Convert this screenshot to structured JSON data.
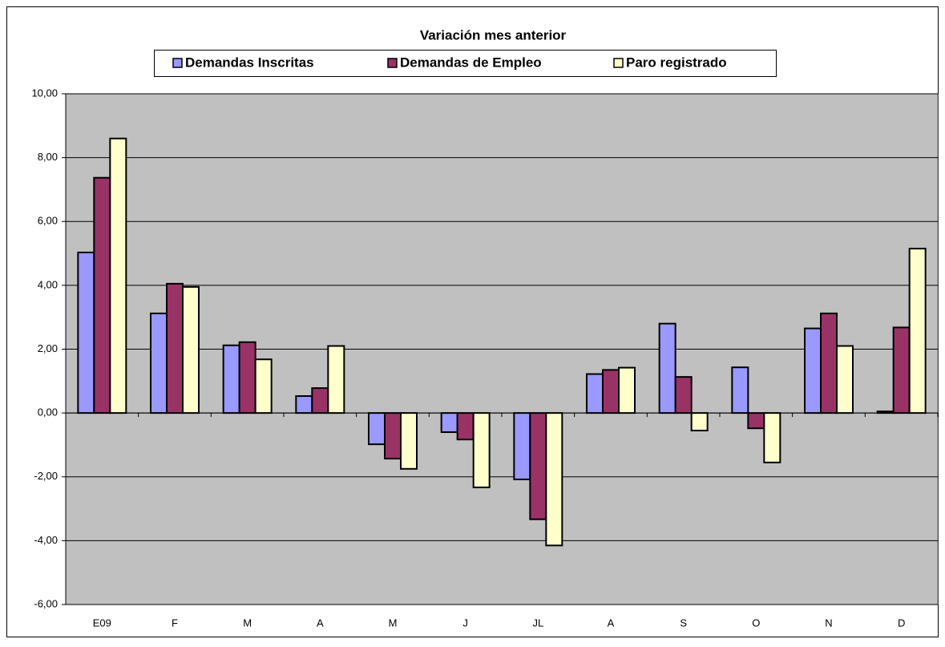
{
  "chart_data": {
    "type": "bar",
    "title": "Variación mes anterior",
    "categories": [
      "E09",
      "F",
      "M",
      "A",
      "M",
      "J",
      "JL",
      "A",
      "S",
      "O",
      "N",
      "D"
    ],
    "series": [
      {
        "name": "Demandas Inscritas",
        "color": "#9999ff",
        "values": [
          5.03,
          3.12,
          2.12,
          0.53,
          -0.98,
          -0.6,
          -2.08,
          1.22,
          2.8,
          1.43,
          2.65,
          0.05
        ]
      },
      {
        "name": "Demandas de Empleo",
        "color": "#993366",
        "values": [
          7.37,
          4.05,
          2.22,
          0.78,
          -1.43,
          -0.83,
          -3.33,
          1.35,
          1.13,
          -0.48,
          3.12,
          2.68
        ]
      },
      {
        "name": "Paro registrado",
        "color": "#ffffcc",
        "values": [
          8.6,
          3.95,
          1.68,
          2.1,
          -1.75,
          -2.33,
          -4.15,
          1.42,
          -0.55,
          -1.55,
          2.1,
          5.15
        ]
      }
    ],
    "ylim": [
      -6,
      10
    ],
    "yticks": [
      {
        "value": -6,
        "label": "-6,00"
      },
      {
        "value": -4,
        "label": "-4,00"
      },
      {
        "value": -2,
        "label": "-2,00"
      },
      {
        "value": 0,
        "label": "0,00"
      },
      {
        "value": 2,
        "label": "2,00"
      },
      {
        "value": 4,
        "label": "4,00"
      },
      {
        "value": 6,
        "label": "6,00"
      },
      {
        "value": 8,
        "label": "8,00"
      },
      {
        "value": 10,
        "label": "10,00"
      }
    ],
    "grid": true
  }
}
